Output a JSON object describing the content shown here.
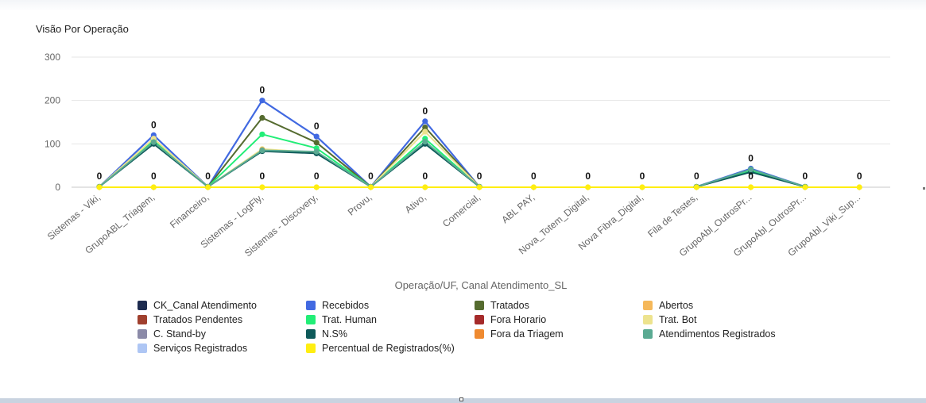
{
  "chart_data": {
    "type": "line",
    "title": "Visão Por Operação",
    "xlabel": "Operação/UF, Canal Atendimento_SL",
    "ylabel": "",
    "ylim": [
      0,
      300
    ],
    "yticks": [
      0,
      100,
      200,
      300
    ],
    "grid": true,
    "legend_position": "bottom",
    "categories": [
      "Sistemas - Viki,",
      "GrupoABL_Triagem,",
      "Financeiro,",
      "Sistemas - LogFly,",
      "Sistemas - Discovery,",
      "Provu,",
      "Ativo,",
      "Comercial,",
      "ABL PAY,",
      "Nova_Totem_Digital,",
      "Nova Fibra_Digital,",
      "Fila de Testes,",
      "GrupoAbl_OutrosPr...",
      "GrupoAbl_OutrosPr...",
      "GrupoAbl_Viki_Sup..."
    ],
    "series": [
      {
        "name": "CK_Canal Atendimento",
        "color": "#1d2b4f",
        "values": [
          null,
          null,
          null,
          null,
          null,
          null,
          null,
          null,
          null,
          null,
          null,
          null,
          null,
          null,
          null
        ]
      },
      {
        "name": "Recebidos",
        "color": "#4169e1",
        "values": [
          1,
          120,
          1,
          200,
          117,
          1,
          152,
          1,
          null,
          null,
          null,
          1,
          43,
          1,
          null
        ]
      },
      {
        "name": "Tratados",
        "color": "#556b2f",
        "values": [
          1,
          110,
          1,
          160,
          103,
          1,
          138,
          1,
          null,
          null,
          null,
          1,
          40,
          1,
          null
        ]
      },
      {
        "name": "Abertos",
        "color": "#f5b85a",
        "values": [
          1,
          null,
          1,
          null,
          null,
          null,
          null,
          null,
          null,
          null,
          null,
          null,
          null,
          null,
          null
        ]
      },
      {
        "name": "Tratados Pendentes",
        "color": "#a0402e",
        "values": [
          null,
          null,
          null,
          null,
          null,
          null,
          null,
          null,
          null,
          null,
          null,
          null,
          null,
          null,
          null
        ]
      },
      {
        "name": "Trat. Human",
        "color": "#22ee77",
        "values": [
          1,
          108,
          1,
          122,
          90,
          1,
          112,
          1,
          null,
          null,
          null,
          1,
          38,
          1,
          null
        ]
      },
      {
        "name": "Fora Horario",
        "color": "#a52a2a",
        "values": [
          null,
          null,
          null,
          null,
          null,
          null,
          null,
          null,
          null,
          null,
          null,
          null,
          null,
          null,
          null
        ]
      },
      {
        "name": "Trat. Bot",
        "color": "#ede38e",
        "values": [
          1,
          112,
          1,
          88,
          80,
          1,
          128,
          1,
          null,
          null,
          null,
          1,
          null,
          null,
          null
        ]
      },
      {
        "name": "C. Stand-by",
        "color": "#8b8aa8",
        "values": [
          null,
          null,
          null,
          null,
          null,
          null,
          null,
          null,
          null,
          null,
          null,
          null,
          null,
          null,
          null
        ]
      },
      {
        "name": "N.S%",
        "color": "#0e5a5a",
        "values": [
          1,
          100,
          1,
          83,
          78,
          1,
          100,
          1,
          null,
          null,
          null,
          1,
          35,
          1,
          null
        ]
      },
      {
        "name": "Fora da Triagem",
        "color": "#ef8a30",
        "values": [
          null,
          null,
          null,
          86,
          null,
          null,
          null,
          null,
          null,
          null,
          null,
          null,
          null,
          null,
          null
        ]
      },
      {
        "name": "Atendimentos Registrados",
        "color": "#5aaa92",
        "values": [
          1,
          104,
          1,
          85,
          82,
          1,
          105,
          1,
          null,
          null,
          null,
          1,
          41,
          1,
          null
        ]
      },
      {
        "name": "Serviços Registrados",
        "color": "#aec6f4",
        "values": [
          null,
          null,
          null,
          null,
          null,
          null,
          null,
          null,
          null,
          null,
          null,
          null,
          null,
          null,
          null
        ]
      },
      {
        "name": "Percentual de Registrados(%)",
        "color": "#ffee11",
        "values": [
          0,
          0,
          0,
          0,
          0,
          0,
          0,
          0,
          0,
          0,
          0,
          0,
          0,
          0,
          0
        ]
      }
    ],
    "data_labels": {
      "value_text": "0",
      "top_label_series": "Recebidos",
      "bottom_label_series": "Percentual de Registrados(%)"
    }
  },
  "legend_items": [
    "CK_Canal Atendimento",
    "Recebidos",
    "Tratados",
    "Abertos",
    "Tratados Pendentes",
    "Trat. Human",
    "Fora Horario",
    "Trat. Bot",
    "C. Stand-by",
    "N.S%",
    "Fora da Triagem",
    "Atendimentos Registrados",
    "Serviços Registrados",
    "Percentual de Registrados(%)"
  ]
}
